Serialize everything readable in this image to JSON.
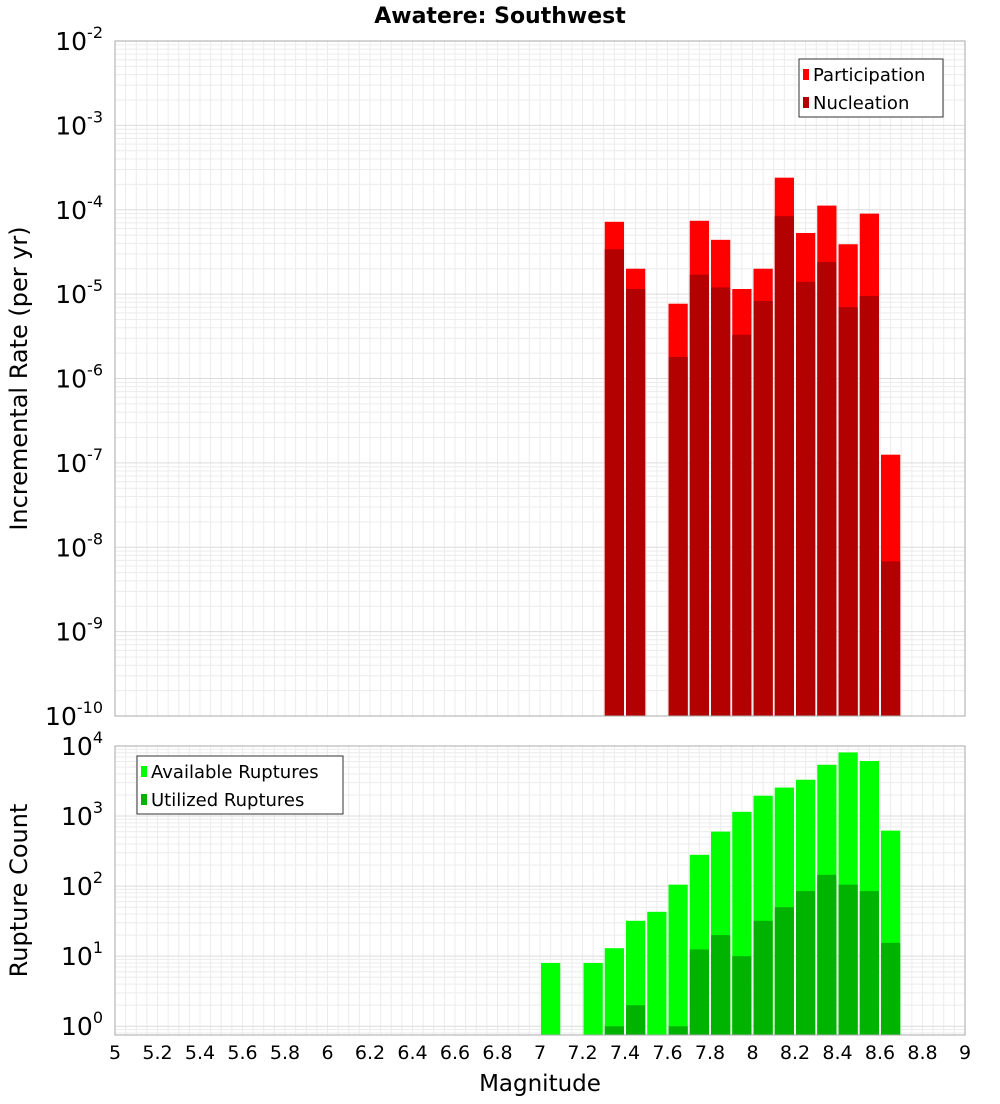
{
  "chart_data": [
    {
      "type": "bar",
      "title": "Awatere: Southwest",
      "xlabel": "",
      "ylabel": "Incremental Rate (per yr)",
      "yscale": "log",
      "xlim": [
        5,
        9
      ],
      "ylim": [
        1e-10,
        0.01
      ],
      "y_tick_exponents": [
        "-10",
        "-9",
        "-8",
        "-7",
        "-6",
        "-5",
        "-4",
        "-3",
        "-2"
      ],
      "y_tick_base": "10",
      "grid": true,
      "legend_position": "top-right",
      "series": [
        {
          "name": "Participation",
          "color": "#ff0000",
          "x": [
            7.35,
            7.45,
            7.65,
            7.75,
            7.85,
            7.95,
            8.05,
            8.15,
            8.25,
            8.35,
            8.45,
            8.55,
            8.65
          ],
          "values": [
            7.2e-05,
            2e-05,
            7.7e-06,
            7.4e-05,
            4.4e-05,
            1.15e-05,
            2e-05,
            0.00024,
            5.3e-05,
            0.000112,
            3.9e-05,
            9e-05,
            1.25e-07
          ]
        },
        {
          "name": "Nucleation",
          "color": "#b30000",
          "x": [
            7.35,
            7.45,
            7.65,
            7.75,
            7.85,
            7.95,
            8.05,
            8.15,
            8.25,
            8.35,
            8.45,
            8.55,
            8.65
          ],
          "values": [
            3.4e-05,
            1.15e-05,
            1.8e-06,
            1.7e-05,
            1.2e-05,
            3.3e-06,
            8.3e-06,
            8.4e-05,
            1.4e-05,
            2.4e-05,
            7e-06,
            9.5e-06,
            6.8e-09
          ]
        }
      ]
    },
    {
      "type": "bar",
      "title": "",
      "xlabel": "Magnitude",
      "ylabel": "Rupture Count",
      "yscale": "log",
      "xlim": [
        5,
        9
      ],
      "ylim": [
        0.75,
        10000
      ],
      "y_tick_exponents": [
        "0",
        "1",
        "2",
        "3",
        "4"
      ],
      "y_tick_base": "10",
      "x_ticks": [
        "5",
        "5.2",
        "5.4",
        "5.6",
        "5.8",
        "6",
        "6.2",
        "6.4",
        "6.6",
        "6.8",
        "7",
        "7.2",
        "7.4",
        "7.6",
        "7.8",
        "8",
        "8.2",
        "8.4",
        "8.6",
        "8.8",
        "9"
      ],
      "grid": true,
      "legend_position": "top-left",
      "series": [
        {
          "name": "Available Ruptures",
          "color": "#00ff00",
          "x": [
            7.05,
            7.25,
            7.35,
            7.45,
            7.55,
            7.65,
            7.75,
            7.85,
            7.95,
            8.05,
            8.15,
            8.25,
            8.35,
            8.45,
            8.55,
            8.65
          ],
          "values": [
            8,
            8,
            13,
            32,
            43,
            105,
            280,
            600,
            1150,
            1950,
            2550,
            3300,
            5400,
            8100,
            6100,
            620
          ]
        },
        {
          "name": "Utilized Ruptures",
          "color": "#00b300",
          "x": [
            7.35,
            7.45,
            7.65,
            7.75,
            7.85,
            7.95,
            8.05,
            8.15,
            8.25,
            8.35,
            8.45,
            8.55,
            8.65
          ],
          "values": [
            1,
            2,
            1,
            12.5,
            20,
            10,
            32,
            50,
            85,
            145,
            105,
            85,
            15.5
          ]
        }
      ]
    }
  ]
}
